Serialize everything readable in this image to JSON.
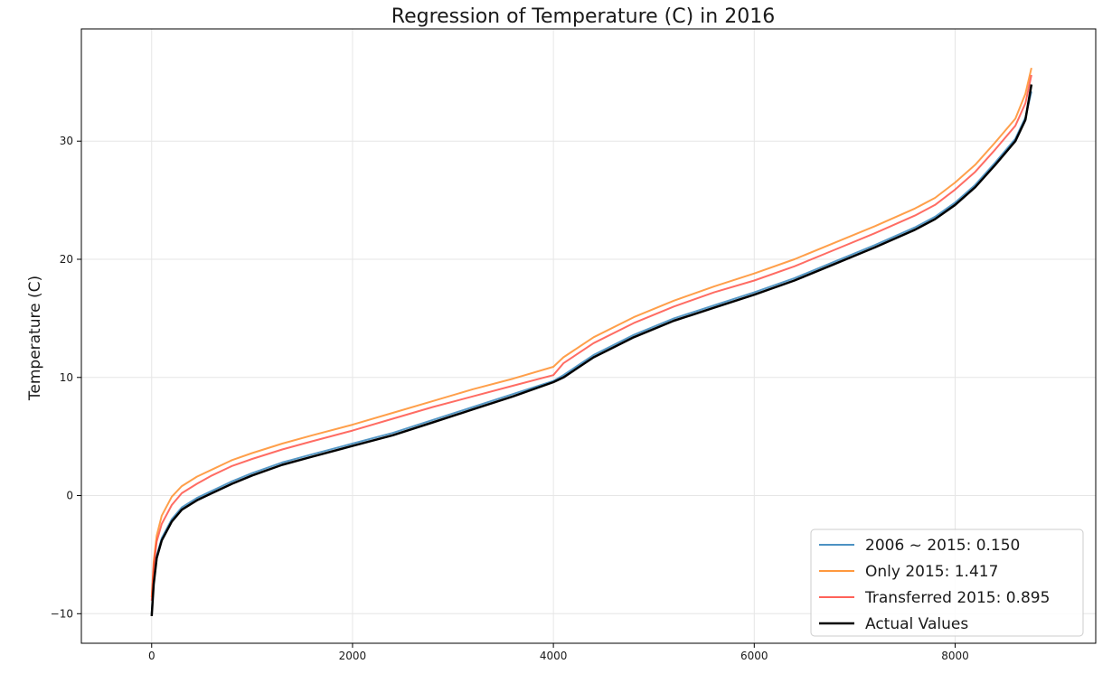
{
  "chart_data": {
    "type": "line",
    "title": "Regression of Temperature (C) in 2016",
    "xlabel": "",
    "ylabel": "Temperature (C)",
    "xlim": [
      -700,
      9400
    ],
    "ylim": [
      -12.5,
      39.5
    ],
    "xticks": [
      0,
      2000,
      4000,
      6000,
      8000
    ],
    "yticks": [
      -10,
      0,
      10,
      20,
      30
    ],
    "grid": true,
    "legend_position": "lower right",
    "series": [
      {
        "name": "2006 ~ 2015: 0.150",
        "color": "#1f77b4",
        "x": [
          0,
          20,
          50,
          100,
          200,
          300,
          450,
          600,
          800,
          1000,
          1300,
          1600,
          2000,
          2400,
          2800,
          3200,
          3600,
          4000,
          4100,
          4400,
          4800,
          5200,
          5600,
          6000,
          6400,
          6800,
          7200,
          7600,
          7800,
          8000,
          8200,
          8400,
          8600,
          8700,
          8760
        ],
        "values": [
          -10.0,
          -7.2,
          -5.1,
          -3.6,
          -2.0,
          -1.0,
          -0.2,
          0.4,
          1.2,
          1.9,
          2.8,
          3.5,
          4.4,
          5.3,
          6.4,
          7.5,
          8.6,
          9.7,
          10.2,
          11.9,
          13.6,
          15.0,
          16.1,
          17.2,
          18.4,
          19.8,
          21.2,
          22.7,
          23.6,
          24.8,
          26.3,
          28.2,
          30.2,
          32.0,
          34.2
        ]
      },
      {
        "name": "Only 2015: 1.417",
        "color": "#ff7f0e",
        "x": [
          0,
          20,
          50,
          100,
          200,
          300,
          450,
          600,
          800,
          1000,
          1300,
          1600,
          2000,
          2400,
          2800,
          3200,
          3600,
          4000,
          4100,
          4400,
          4800,
          5200,
          5600,
          6000,
          6400,
          6800,
          7200,
          7600,
          7800,
          8000,
          8200,
          8400,
          8600,
          8700,
          8760
        ],
        "values": [
          -8.6,
          -5.6,
          -3.4,
          -1.7,
          -0.1,
          0.8,
          1.6,
          2.2,
          3.0,
          3.6,
          4.4,
          5.1,
          6.0,
          7.0,
          8.0,
          9.0,
          9.9,
          10.9,
          11.7,
          13.4,
          15.1,
          16.5,
          17.7,
          18.8,
          20.0,
          21.4,
          22.8,
          24.3,
          25.2,
          26.5,
          28.0,
          29.9,
          31.9,
          34.0,
          36.2
        ]
      },
      {
        "name": "Transferred 2015: 0.895",
        "color": "#ff3b2f",
        "x": [
          0,
          20,
          50,
          100,
          200,
          300,
          450,
          600,
          800,
          1000,
          1300,
          1600,
          2000,
          2400,
          2800,
          3200,
          3600,
          4000,
          4100,
          4400,
          4800,
          5200,
          5600,
          6000,
          6400,
          6800,
          7200,
          7600,
          7800,
          8000,
          8200,
          8400,
          8600,
          8700,
          8760
        ],
        "values": [
          -8.9,
          -6.0,
          -3.9,
          -2.4,
          -0.8,
          0.2,
          1.0,
          1.7,
          2.5,
          3.1,
          3.9,
          4.6,
          5.5,
          6.5,
          7.5,
          8.4,
          9.3,
          10.2,
          11.2,
          12.9,
          14.6,
          16.0,
          17.2,
          18.2,
          19.4,
          20.8,
          22.2,
          23.7,
          24.6,
          25.9,
          27.4,
          29.3,
          31.3,
          33.2,
          35.6
        ]
      },
      {
        "name": "Actual Values",
        "color": "#000000",
        "x": [
          0,
          20,
          50,
          100,
          200,
          300,
          450,
          600,
          800,
          1000,
          1300,
          1600,
          2000,
          2400,
          2800,
          3200,
          3600,
          4000,
          4100,
          4400,
          4800,
          5200,
          5600,
          6000,
          6400,
          6800,
          7200,
          7600,
          7800,
          8000,
          8200,
          8400,
          8600,
          8700,
          8760
        ],
        "values": [
          -10.2,
          -7.5,
          -5.3,
          -3.8,
          -2.2,
          -1.2,
          -0.4,
          0.2,
          1.0,
          1.7,
          2.6,
          3.3,
          4.2,
          5.1,
          6.2,
          7.3,
          8.4,
          9.6,
          10.0,
          11.7,
          13.4,
          14.8,
          15.9,
          17.0,
          18.2,
          19.6,
          21.0,
          22.5,
          23.4,
          24.6,
          26.1,
          28.0,
          30.0,
          31.8,
          34.8
        ]
      }
    ]
  }
}
